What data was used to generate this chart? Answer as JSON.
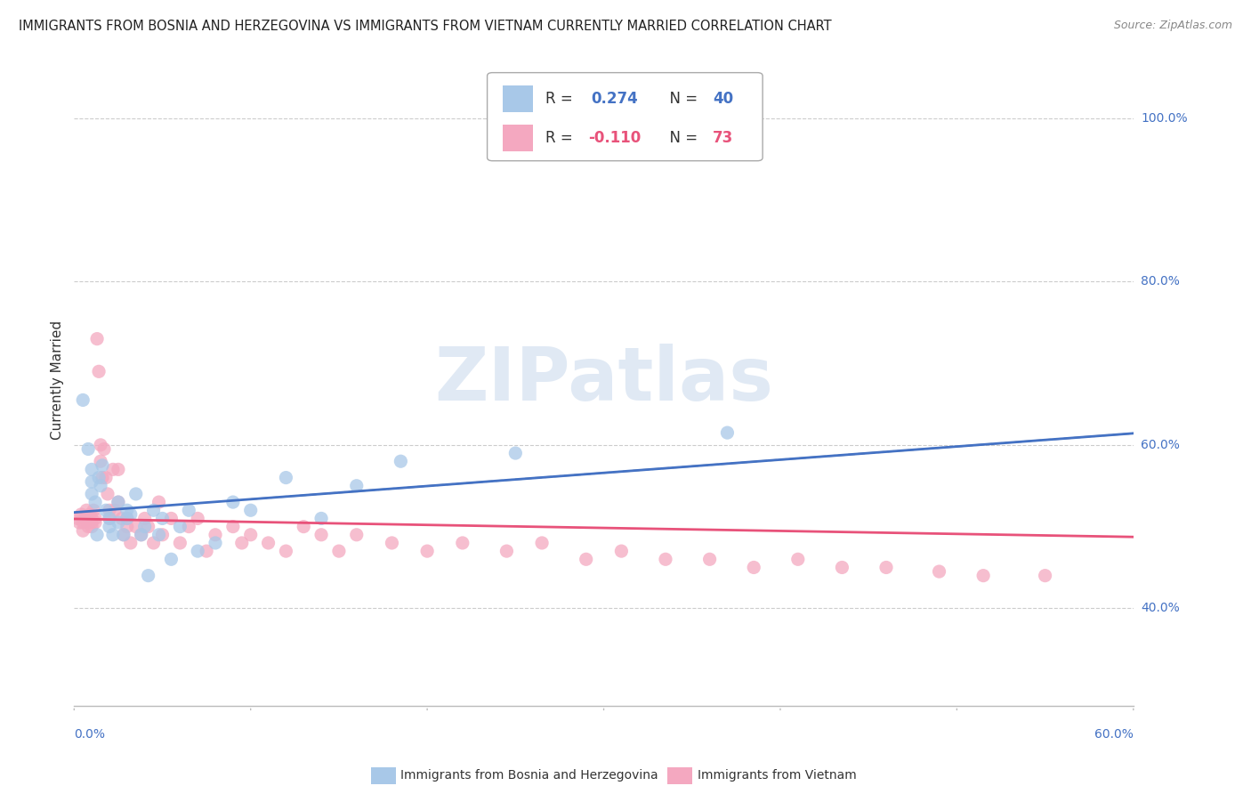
{
  "title": "IMMIGRANTS FROM BOSNIA AND HERZEGOVINA VS IMMIGRANTS FROM VIETNAM CURRENTLY MARRIED CORRELATION CHART",
  "source": "Source: ZipAtlas.com",
  "ylabel": "Currently Married",
  "ytick_labels": [
    "40.0%",
    "60.0%",
    "80.0%",
    "100.0%"
  ],
  "ytick_values": [
    0.4,
    0.6,
    0.8,
    1.0
  ],
  "xlim": [
    0.0,
    0.6
  ],
  "ylim": [
    0.28,
    1.08
  ],
  "watermark": "ZIPatlas",
  "legend_bosnia_r": "R =  0.274",
  "legend_bosnia_n": "N = 40",
  "legend_vietnam_r": "R = -0.110",
  "legend_vietnam_n": "N = 73",
  "bosnia_color": "#A8C8E8",
  "vietnam_color": "#F4A8C0",
  "bosnia_line_color": "#4472C4",
  "vietnam_line_color": "#E8527A",
  "grid_color": "#CCCCCC",
  "bosnia_x": [
    0.005,
    0.008,
    0.01,
    0.01,
    0.01,
    0.012,
    0.013,
    0.014,
    0.015,
    0.016,
    0.018,
    0.02,
    0.02,
    0.022,
    0.025,
    0.025,
    0.028,
    0.03,
    0.03,
    0.032,
    0.035,
    0.038,
    0.04,
    0.042,
    0.045,
    0.048,
    0.05,
    0.055,
    0.06,
    0.065,
    0.07,
    0.08,
    0.09,
    0.1,
    0.12,
    0.14,
    0.16,
    0.185,
    0.25,
    0.37
  ],
  "bosnia_y": [
    0.655,
    0.595,
    0.57,
    0.555,
    0.54,
    0.53,
    0.49,
    0.56,
    0.55,
    0.575,
    0.52,
    0.51,
    0.5,
    0.49,
    0.53,
    0.505,
    0.49,
    0.52,
    0.51,
    0.515,
    0.54,
    0.49,
    0.5,
    0.44,
    0.52,
    0.49,
    0.51,
    0.46,
    0.5,
    0.52,
    0.47,
    0.48,
    0.53,
    0.52,
    0.56,
    0.51,
    0.55,
    0.58,
    0.59,
    0.615
  ],
  "vietnam_x": [
    0.002,
    0.003,
    0.004,
    0.005,
    0.005,
    0.006,
    0.007,
    0.008,
    0.008,
    0.009,
    0.01,
    0.01,
    0.01,
    0.011,
    0.012,
    0.012,
    0.013,
    0.014,
    0.015,
    0.015,
    0.016,
    0.017,
    0.018,
    0.019,
    0.02,
    0.02,
    0.022,
    0.023,
    0.025,
    0.025,
    0.027,
    0.028,
    0.03,
    0.03,
    0.032,
    0.035,
    0.038,
    0.04,
    0.042,
    0.045,
    0.048,
    0.05,
    0.055,
    0.06,
    0.065,
    0.07,
    0.075,
    0.08,
    0.09,
    0.095,
    0.1,
    0.11,
    0.12,
    0.13,
    0.14,
    0.15,
    0.16,
    0.18,
    0.2,
    0.22,
    0.245,
    0.265,
    0.29,
    0.31,
    0.335,
    0.36,
    0.385,
    0.41,
    0.435,
    0.46,
    0.49,
    0.515,
    0.55
  ],
  "vietnam_y": [
    0.51,
    0.505,
    0.515,
    0.495,
    0.505,
    0.51,
    0.52,
    0.5,
    0.51,
    0.515,
    0.505,
    0.51,
    0.5,
    0.52,
    0.51,
    0.505,
    0.73,
    0.69,
    0.6,
    0.58,
    0.56,
    0.595,
    0.56,
    0.54,
    0.51,
    0.52,
    0.57,
    0.52,
    0.57,
    0.53,
    0.51,
    0.49,
    0.51,
    0.5,
    0.48,
    0.5,
    0.49,
    0.51,
    0.5,
    0.48,
    0.53,
    0.49,
    0.51,
    0.48,
    0.5,
    0.51,
    0.47,
    0.49,
    0.5,
    0.48,
    0.49,
    0.48,
    0.47,
    0.5,
    0.49,
    0.47,
    0.49,
    0.48,
    0.47,
    0.48,
    0.47,
    0.48,
    0.46,
    0.47,
    0.46,
    0.46,
    0.45,
    0.46,
    0.45,
    0.45,
    0.445,
    0.44,
    0.44
  ],
  "bosnia_R": 0.274,
  "vietnam_R": -0.11
}
